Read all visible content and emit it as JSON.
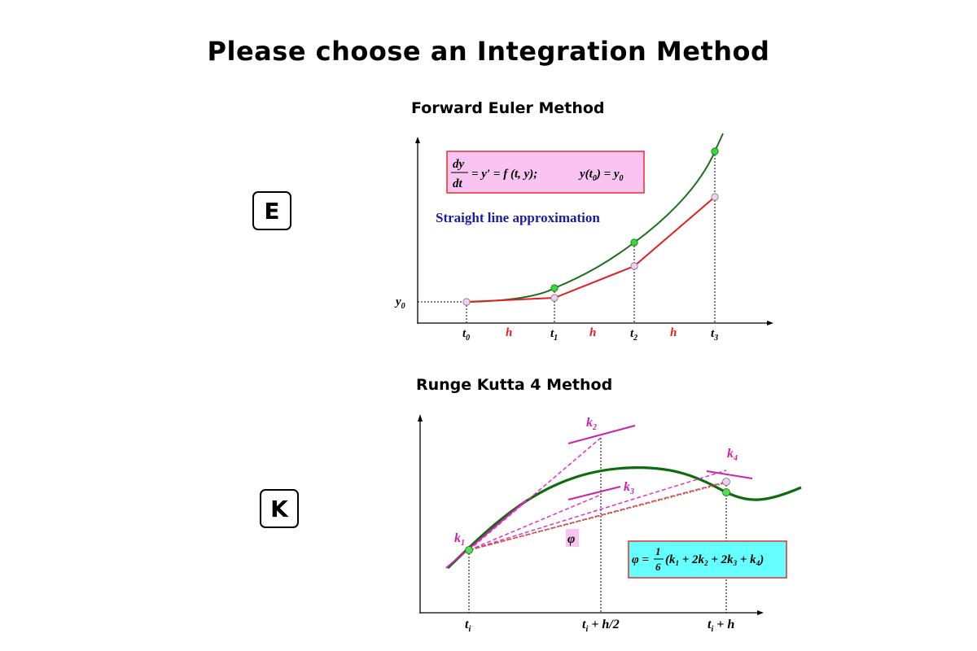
{
  "title": "Please choose an Integration Method",
  "euler": {
    "heading": "Forward Euler Method",
    "key": "E",
    "formula": {
      "dy": "dy",
      "dt": "dt",
      "rest": "= y′ = f (t, y);",
      "ic_a": "y(t",
      "ic_sub": "0",
      "ic_b": ") = y",
      "ic_sub2": "0"
    },
    "caption": "Straight line approximation",
    "y_label": "y",
    "y_sub": "0",
    "t_labels": [
      "t",
      "t",
      "t",
      "t"
    ],
    "t_subs": [
      "0",
      "1",
      "2",
      "3"
    ],
    "h_labels": [
      "h",
      "h",
      "h"
    ],
    "colors": {
      "exact": "#1f6e1f",
      "approx": "#e02020",
      "caption": "#1a1aa8",
      "formula_bg": "#f9c4f2",
      "formula_border": "#e03030"
    }
  },
  "rk4": {
    "heading": "Runge Kutta 4 Method",
    "key": "K",
    "k_labels": [
      "k",
      "k",
      "k",
      "k"
    ],
    "k_subs": [
      "1",
      "2",
      "3",
      "4"
    ],
    "phi": "φ",
    "formula": {
      "lhs": "φ =",
      "num": "1",
      "den": "6",
      "rhs_a": "(k",
      "s1": "1",
      "rhs_b": " + 2k",
      "s2": "2",
      "rhs_c": " + 2k",
      "s3": "3",
      "rhs_d": " + k",
      "s4": "4",
      "rhs_e": ")"
    },
    "x_labels": [
      {
        "a": "t",
        "sub": "i",
        "b": ""
      },
      {
        "a": "t",
        "sub": "i",
        "b": " + h/2"
      },
      {
        "a": "t",
        "sub": "i",
        "b": " + h"
      }
    ],
    "colors": {
      "curve": "#0e6b0e",
      "slope": "#cc22aa",
      "phi_line": "#cc5500",
      "formula_bg": "#66ffff",
      "formula_border": "#e03030"
    }
  }
}
